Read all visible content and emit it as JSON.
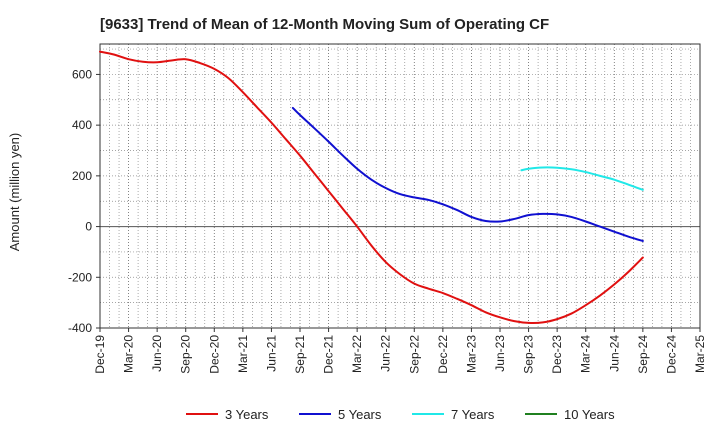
{
  "chart_data": {
    "type": "line",
    "title": "[9633]  Trend of Mean of 12-Month Moving Sum of Operating CF",
    "ylabel": "Amount (million yen)",
    "xlabel": "",
    "ylim": [
      -400,
      720
    ],
    "yticks": [
      -400,
      -200,
      0,
      200,
      400,
      600
    ],
    "ytick_labels": [
      "-400",
      "-200",
      "0",
      "200",
      "400",
      "600"
    ],
    "x_categories": [
      "Dec-19",
      "Mar-20",
      "Jun-20",
      "Sep-20",
      "Dec-20",
      "Mar-21",
      "Jun-21",
      "Sep-21",
      "Dec-21",
      "Mar-22",
      "Jun-22",
      "Sep-22",
      "Dec-22",
      "Mar-23",
      "Jun-23",
      "Sep-23",
      "Dec-23",
      "Mar-24",
      "Jun-24",
      "Sep-24",
      "Dec-24",
      "Mar-25"
    ],
    "grid": true,
    "legend_position": "bottom",
    "series": [
      {
        "name": "3 Years",
        "color": "#e01010",
        "points": [
          [
            0,
            690
          ],
          [
            0.5,
            678
          ],
          [
            1,
            660
          ],
          [
            1.5,
            650
          ],
          [
            2,
            648
          ],
          [
            2.5,
            655
          ],
          [
            3,
            660
          ],
          [
            3.5,
            645
          ],
          [
            4,
            622
          ],
          [
            4.5,
            585
          ],
          [
            5,
            530
          ],
          [
            5.5,
            470
          ],
          [
            6,
            410
          ],
          [
            6.5,
            345
          ],
          [
            7,
            280
          ],
          [
            7.5,
            210
          ],
          [
            8,
            140
          ],
          [
            8.5,
            70
          ],
          [
            9,
            0
          ],
          [
            9.5,
            -75
          ],
          [
            10,
            -140
          ],
          [
            10.5,
            -188
          ],
          [
            11,
            -225
          ],
          [
            11.5,
            -245
          ],
          [
            12,
            -262
          ],
          [
            12.5,
            -285
          ],
          [
            13,
            -310
          ],
          [
            13.5,
            -338
          ],
          [
            14,
            -358
          ],
          [
            14.5,
            -373
          ],
          [
            15,
            -380
          ],
          [
            15.5,
            -378
          ],
          [
            16,
            -365
          ],
          [
            16.5,
            -343
          ],
          [
            17,
            -310
          ],
          [
            17.5,
            -272
          ],
          [
            18,
            -228
          ],
          [
            18.5,
            -178
          ],
          [
            19,
            -122
          ]
        ]
      },
      {
        "name": "5 Years",
        "color": "#1010d0",
        "points": [
          [
            6.75,
            468
          ],
          [
            7,
            440
          ],
          [
            7.5,
            388
          ],
          [
            8,
            335
          ],
          [
            8.5,
            280
          ],
          [
            9,
            228
          ],
          [
            9.5,
            185
          ],
          [
            10,
            152
          ],
          [
            10.5,
            128
          ],
          [
            11,
            115
          ],
          [
            11.5,
            105
          ],
          [
            12,
            88
          ],
          [
            12.5,
            65
          ],
          [
            13,
            38
          ],
          [
            13.5,
            22
          ],
          [
            14,
            20
          ],
          [
            14.5,
            30
          ],
          [
            15,
            45
          ],
          [
            15.5,
            50
          ],
          [
            16,
            48
          ],
          [
            16.5,
            38
          ],
          [
            17,
            20
          ],
          [
            17.5,
            0
          ],
          [
            18,
            -20
          ],
          [
            18.5,
            -40
          ],
          [
            19,
            -57
          ]
        ]
      },
      {
        "name": "7 Years",
        "color": "#20e8e8",
        "points": [
          [
            14.75,
            222
          ],
          [
            15,
            228
          ],
          [
            15.5,
            233
          ],
          [
            16,
            232
          ],
          [
            16.5,
            226
          ],
          [
            17,
            215
          ],
          [
            17.5,
            200
          ],
          [
            18,
            185
          ],
          [
            18.5,
            165
          ],
          [
            19,
            145
          ]
        ]
      },
      {
        "name": "10 Years",
        "color": "#208020",
        "points": []
      }
    ]
  }
}
